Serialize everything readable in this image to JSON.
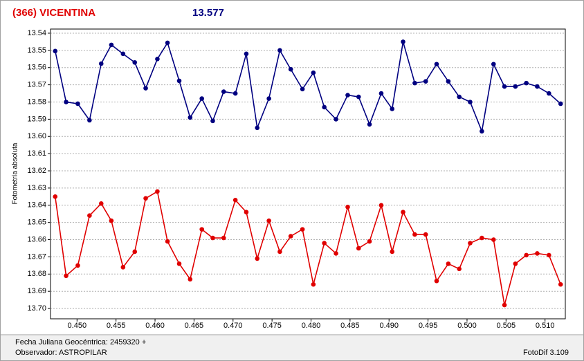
{
  "chart_data": {
    "type": "line",
    "title": "(366) VICENTINA",
    "subtitle": "13.577",
    "y_label": "Fotometría absoluta",
    "x_label": "Fecha Juliana Geocéntrica: 2459320 +",
    "observer": "Observador: ASTROPILAR",
    "software": "FotoDif 3.109",
    "x": [
      0.4472,
      0.4486,
      0.4501,
      0.4516,
      0.4531,
      0.4544,
      0.4559,
      0.4574,
      0.4588,
      0.4603,
      0.4616,
      0.4631,
      0.4645,
      0.466,
      0.4674,
      0.4688,
      0.4703,
      0.4717,
      0.4731,
      0.4746,
      0.476,
      0.4774,
      0.4789,
      0.4803,
      0.4817,
      0.4832,
      0.4847,
      0.4861,
      0.4875,
      0.489,
      0.4904,
      0.4918,
      0.4933,
      0.4947,
      0.4961,
      0.4976,
      0.499,
      0.5004,
      0.5019,
      0.5034,
      0.5048,
      0.5062,
      0.5076,
      0.509,
      0.5105,
      0.512
    ],
    "series": [
      {
        "color": "#000080",
        "values": [
          13.5504,
          13.58,
          13.581,
          13.5906,
          13.5577,
          13.5468,
          13.552,
          13.557,
          13.572,
          13.555,
          13.5456,
          13.5677,
          13.589,
          13.578,
          13.591,
          13.574,
          13.575,
          13.552,
          13.595,
          13.578,
          13.55,
          13.561,
          13.5725,
          13.563,
          13.583,
          13.59,
          13.576,
          13.577,
          13.593,
          13.575,
          13.584,
          13.545,
          13.569,
          13.568,
          13.558,
          13.568,
          13.577,
          13.58,
          13.597,
          13.558,
          13.571,
          13.571,
          13.569,
          13.571,
          13.575,
          13.581
        ]
      },
      {
        "color": "#e00000",
        "values": [
          13.635,
          13.681,
          13.675,
          13.646,
          13.639,
          13.649,
          13.676,
          13.667,
          13.636,
          13.632,
          13.661,
          13.674,
          13.683,
          13.654,
          13.659,
          13.659,
          13.637,
          13.644,
          13.671,
          13.649,
          13.667,
          13.658,
          13.654,
          13.686,
          13.662,
          13.668,
          13.641,
          13.665,
          13.661,
          13.64,
          13.667,
          13.644,
          13.657,
          13.657,
          13.684,
          13.674,
          13.677,
          13.662,
          13.659,
          13.66,
          13.698,
          13.674,
          13.669,
          13.668,
          13.669,
          13.686
        ]
      }
    ],
    "xlim": [
      0.4466,
      0.5126
    ],
    "ylim": [
      13.706,
      13.5376
    ],
    "xticks": [
      {
        "value": 0.45,
        "label": "0.450"
      },
      {
        "value": 0.455,
        "label": "0.455"
      },
      {
        "value": 0.46,
        "label": "0.460"
      },
      {
        "value": 0.465,
        "label": "0.465"
      },
      {
        "value": 0.47,
        "label": "0.470"
      },
      {
        "value": 0.475,
        "label": "0.475"
      },
      {
        "value": 0.48,
        "label": "0.480"
      },
      {
        "value": 0.485,
        "label": "0.485"
      },
      {
        "value": 0.49,
        "label": "0.490"
      },
      {
        "value": 0.495,
        "label": "0.495"
      },
      {
        "value": 0.5,
        "label": "0.500"
      },
      {
        "value": 0.505,
        "label": "0.505"
      },
      {
        "value": 0.51,
        "label": "0.510"
      }
    ],
    "yticks": [
      13.54,
      13.55,
      13.56,
      13.57,
      13.58,
      13.59,
      {
        "value": 13.6,
        "label": "13.60"
      },
      13.61,
      13.62,
      13.63,
      13.64,
      13.65,
      13.66,
      13.67,
      13.68,
      13.69,
      {
        "value": 13.7,
        "label": "13.70"
      }
    ],
    "grid": true
  }
}
